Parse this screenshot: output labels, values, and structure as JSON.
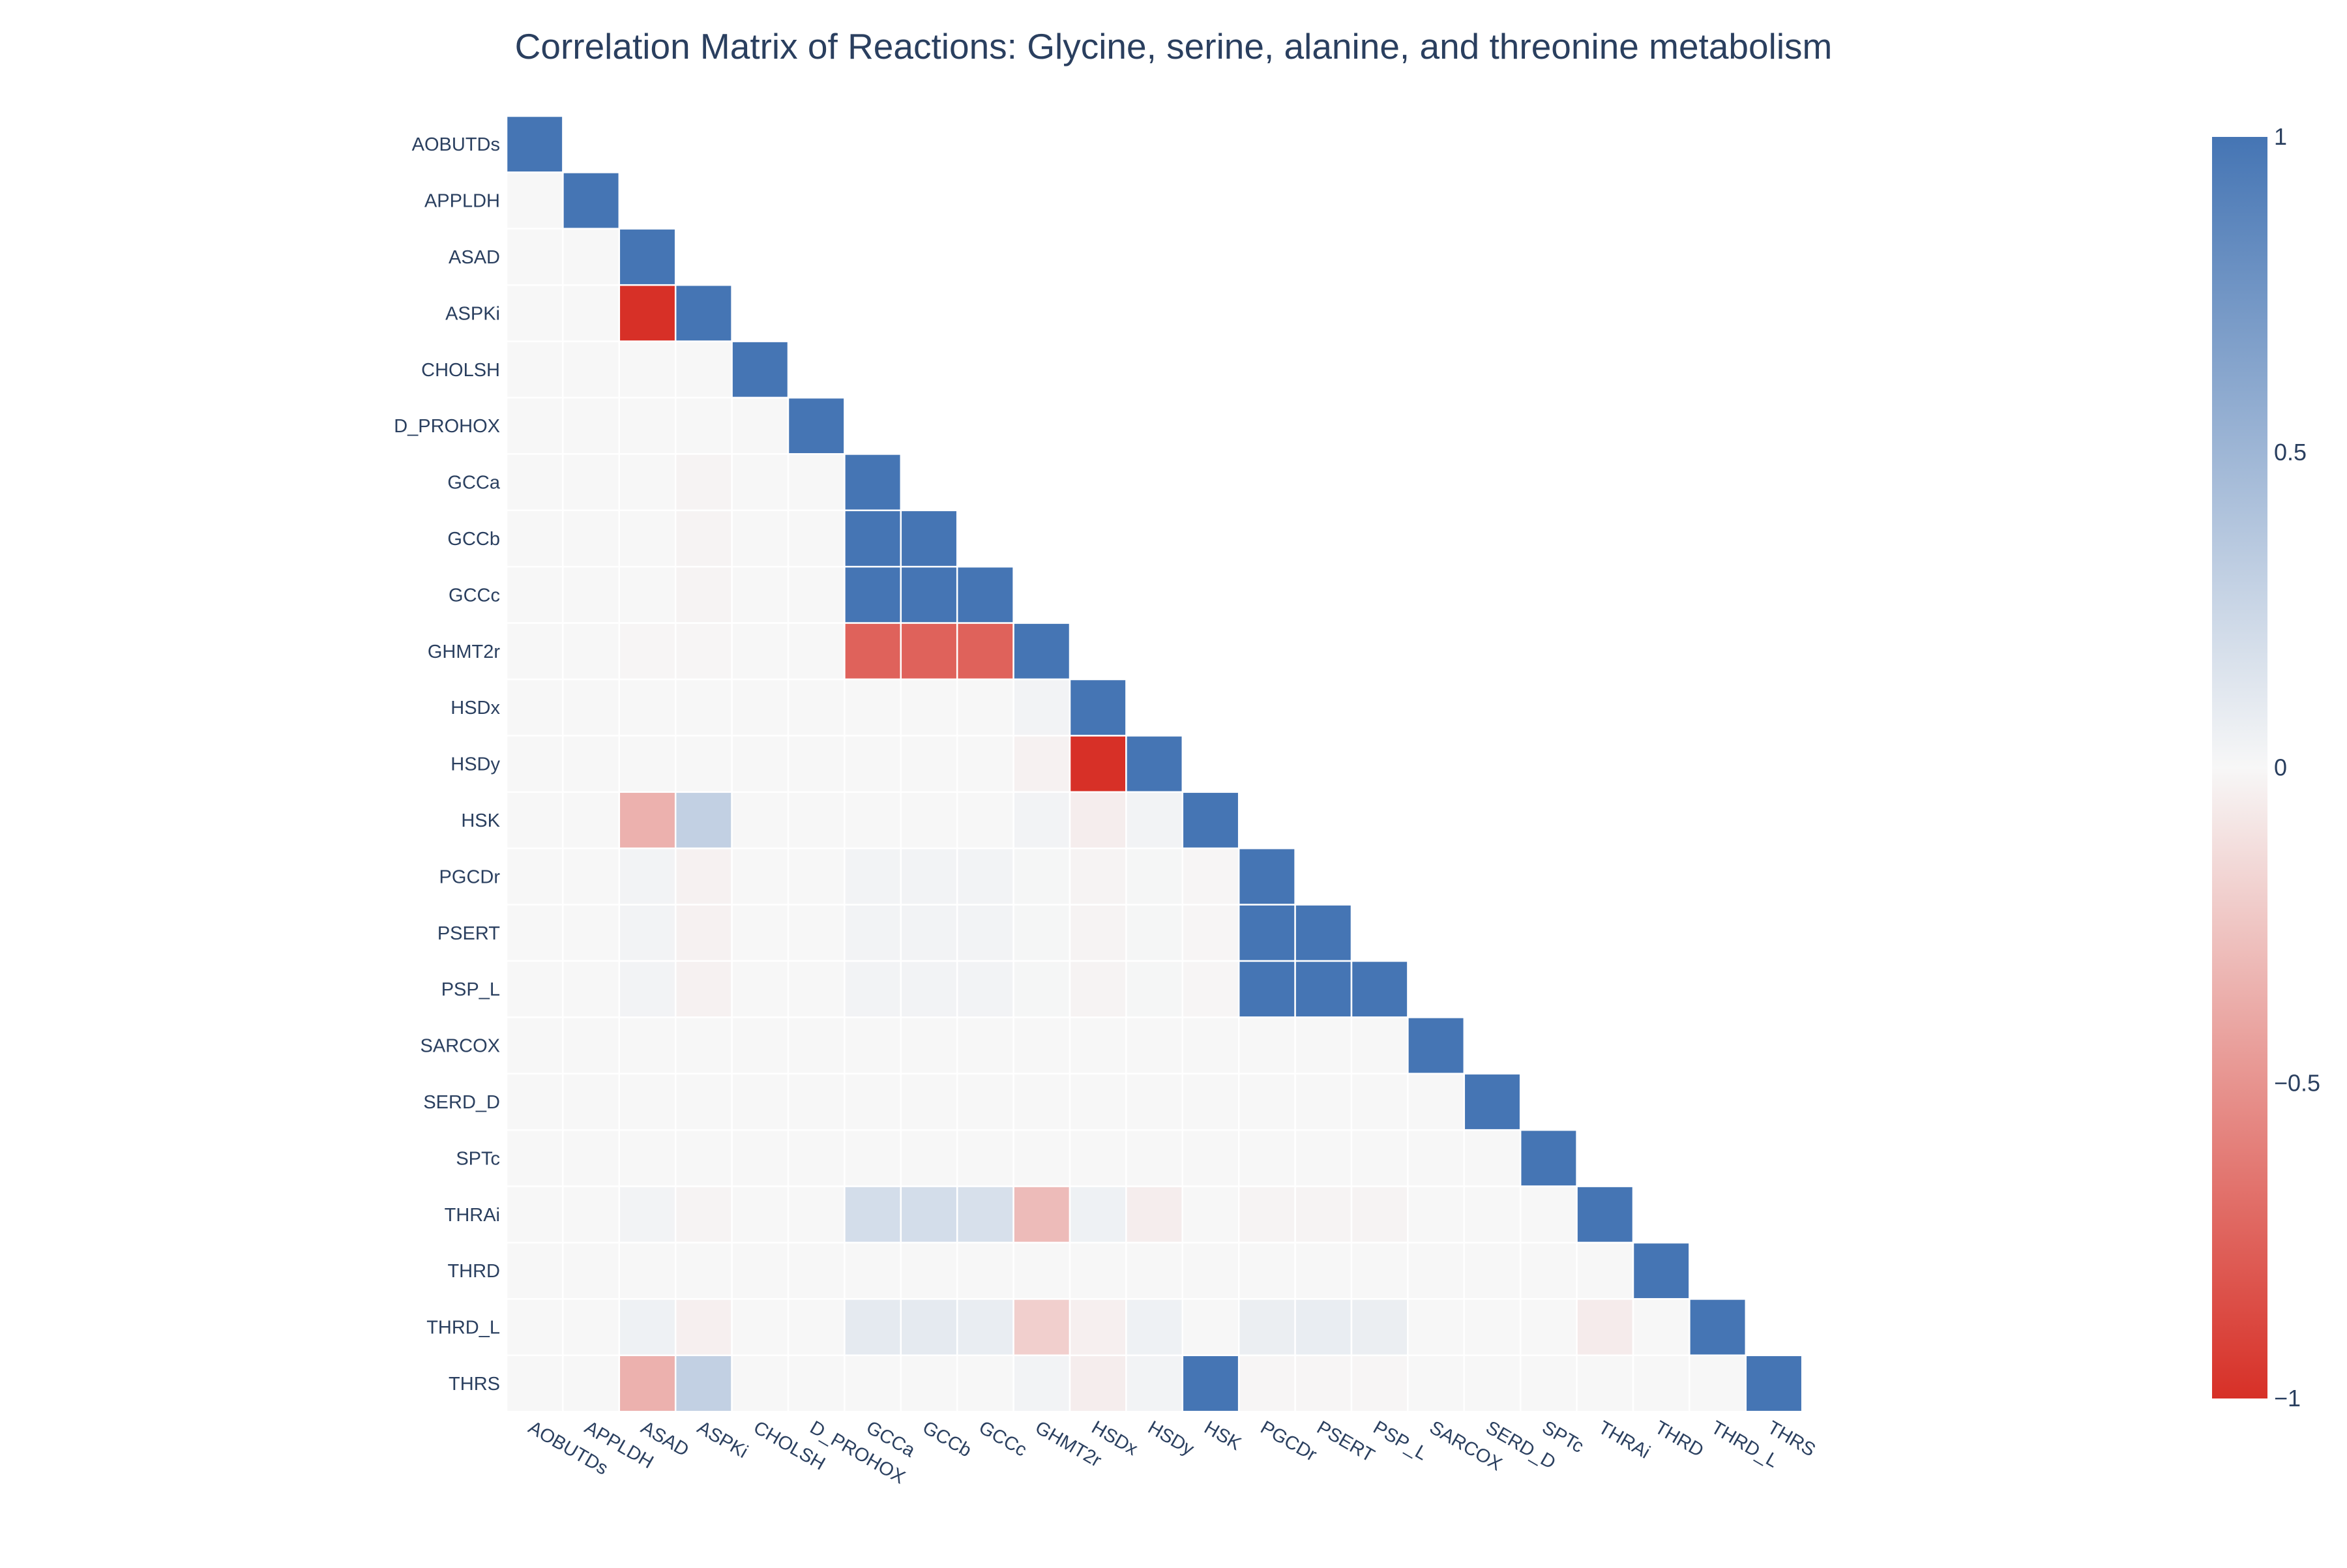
{
  "chart_data": {
    "type": "heatmap",
    "title": "Correlation Matrix of Reactions: Glycine, serine, alanine, and threonine metabolism",
    "xlabel": "",
    "ylabel": "",
    "lower_triangle_only": true,
    "labels": [
      "AOBUTDs",
      "APPLDH",
      "ASAD",
      "ASPKi",
      "CHOLSH",
      "D_PROHOX",
      "GCCa",
      "GCCb",
      "GCCc",
      "GHMT2r",
      "HSDx",
      "HSDy",
      "HSK",
      "PGCDr",
      "PSERT",
      "PSP_L",
      "SARCOX",
      "SERD_D",
      "SPTc",
      "THRAi",
      "THRD",
      "THRD_L",
      "THRS"
    ],
    "matrix": [
      [
        1
      ],
      [
        0,
        1
      ],
      [
        0,
        0,
        1
      ],
      [
        0,
        0,
        -1,
        1
      ],
      [
        0,
        0,
        0,
        0,
        1
      ],
      [
        0,
        0,
        0,
        0,
        0,
        1
      ],
      [
        0,
        0,
        0,
        -0.02,
        0,
        0,
        1
      ],
      [
        0,
        0,
        0,
        -0.02,
        0,
        0,
        1,
        1
      ],
      [
        0,
        0,
        0,
        -0.02,
        0,
        0,
        1,
        1,
        1
      ],
      [
        0,
        0,
        -0.01,
        -0.01,
        0,
        0,
        -0.75,
        -0.75,
        -0.75,
        1
      ],
      [
        0,
        0,
        0,
        0,
        0,
        0,
        0,
        0,
        0,
        0.03,
        1
      ],
      [
        0,
        0,
        0,
        0,
        0,
        0,
        0,
        0,
        0,
        -0.03,
        -1,
        1
      ],
      [
        0,
        0,
        -0.35,
        0.3,
        0,
        0,
        0,
        0,
        0,
        0.03,
        -0.05,
        0.03,
        1
      ],
      [
        0,
        0,
        0.03,
        -0.03,
        0,
        0,
        0.03,
        0.03,
        0.03,
        0.01,
        -0.02,
        0.01,
        -0.01,
        1
      ],
      [
        0,
        0,
        0.03,
        -0.03,
        0,
        0,
        0.03,
        0.03,
        0.03,
        0.01,
        -0.02,
        0.01,
        -0.01,
        1,
        1
      ],
      [
        0,
        0,
        0.03,
        -0.03,
        0,
        0,
        0.03,
        0.03,
        0.03,
        0.01,
        -0.02,
        0.01,
        -0.01,
        1,
        1,
        1
      ],
      [
        0,
        0,
        0,
        0,
        0,
        0,
        0,
        0,
        0,
        0,
        0,
        0,
        0,
        0,
        0,
        0,
        1
      ],
      [
        0,
        0,
        0,
        0,
        0,
        0,
        0,
        0,
        0,
        0,
        0,
        0,
        0,
        0,
        0,
        0,
        0,
        1
      ],
      [
        0,
        0,
        0,
        0,
        0,
        0,
        0,
        0,
        0,
        0,
        0,
        0,
        0,
        0,
        0,
        0,
        0,
        0,
        1
      ],
      [
        0,
        0,
        0.03,
        -0.02,
        0,
        0,
        0.2,
        0.2,
        0.18,
        -0.3,
        0.05,
        -0.05,
        0,
        -0.02,
        -0.02,
        -0.02,
        0,
        0,
        0,
        1
      ],
      [
        0,
        0,
        0,
        0,
        0,
        0,
        0,
        0,
        0,
        0,
        0,
        0,
        0,
        0,
        0,
        0,
        0,
        0,
        0,
        0,
        1
      ],
      [
        0,
        0,
        0.05,
        -0.04,
        0,
        0,
        0.1,
        0.1,
        0.08,
        -0.2,
        -0.04,
        0.05,
        0,
        0.07,
        0.08,
        0.07,
        0,
        0,
        0,
        -0.06,
        0,
        1
      ],
      [
        0,
        0,
        -0.35,
        0.3,
        0,
        0,
        0,
        0,
        0,
        0.03,
        -0.05,
        0.03,
        1,
        -0.01,
        -0.01,
        -0.01,
        0,
        0,
        0,
        0,
        0,
        0,
        1
      ]
    ],
    "zmin": -1,
    "zmax": 1,
    "colorscale": [
      [
        0,
        "#d73027"
      ],
      [
        0.5,
        "#f7f7f7"
      ],
      [
        1,
        "#4575b4"
      ]
    ],
    "colorbar": {
      "ticks": [
        1,
        0.5,
        0,
        -0.5,
        -1
      ],
      "tick_labels": [
        "1",
        "0.5",
        "0",
        "−0.5",
        "−1"
      ]
    },
    "grid": false,
    "legend": "none"
  }
}
